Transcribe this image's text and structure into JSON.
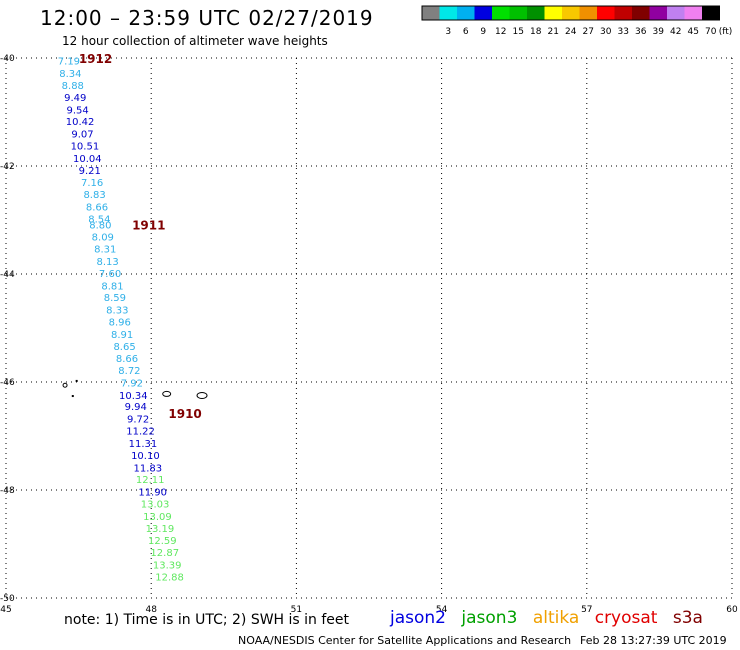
{
  "header": {
    "title": "12:00 – 23:59 UTC 02/27/2019",
    "subtitle": "12 hour collection of altimeter wave heights"
  },
  "color_scale": {
    "unit_label": "(ft)",
    "bins": [
      {
        "label": "",
        "color": "#808080"
      },
      {
        "label": "3",
        "color": "#00e8e8"
      },
      {
        "label": "6",
        "color": "#00b0f0"
      },
      {
        "label": "9",
        "color": "#0000e0"
      },
      {
        "label": "12",
        "color": "#00e000"
      },
      {
        "label": "15",
        "color": "#00c000"
      },
      {
        "label": "18",
        "color": "#009000"
      },
      {
        "label": "21",
        "color": "#ffff00"
      },
      {
        "label": "24",
        "color": "#f8c800"
      },
      {
        "label": "27",
        "color": "#f09000"
      },
      {
        "label": "30",
        "color": "#ff0000"
      },
      {
        "label": "33",
        "color": "#c00000"
      },
      {
        "label": "36",
        "color": "#800000"
      },
      {
        "label": "39",
        "color": "#9000a0"
      },
      {
        "label": "42",
        "color": "#c080f0"
      },
      {
        "label": "45",
        "color": "#f080f0"
      },
      {
        "label": "70",
        "color": "#000000"
      }
    ]
  },
  "axes": {
    "lon_ticks": [
      "45",
      "48",
      "51",
      "54",
      "57",
      "60"
    ],
    "lat_ticks": [
      "-40",
      "-42",
      "-44",
      "-46",
      "-48",
      "-50"
    ]
  },
  "chart_data": {
    "type": "scatter",
    "xlim": [
      45,
      60
    ],
    "ylim": [
      -50,
      -40
    ],
    "grid": true,
    "series": [
      {
        "points": [
          {
            "x": 46.3,
            "y": -40.05,
            "v": "7.19",
            "c": "#30b0e8"
          },
          {
            "x": 46.33,
            "y": -40.28,
            "v": "8.34",
            "c": "#30b0e8"
          },
          {
            "x": 46.38,
            "y": -40.5,
            "v": "8.88",
            "c": "#30b0e8"
          },
          {
            "x": 46.43,
            "y": -40.72,
            "v": "9.49",
            "c": "#0000c8"
          },
          {
            "x": 46.48,
            "y": -40.95,
            "v": "9.54",
            "c": "#0000c8"
          },
          {
            "x": 46.53,
            "y": -41.17,
            "v": "10.42",
            "c": "#0000c8"
          },
          {
            "x": 46.58,
            "y": -41.4,
            "v": "9.07",
            "c": "#0000c8"
          },
          {
            "x": 46.63,
            "y": -41.62,
            "v": "10.51",
            "c": "#0000c8"
          },
          {
            "x": 46.68,
            "y": -41.85,
            "v": "10.04",
            "c": "#0000c8"
          },
          {
            "x": 46.73,
            "y": -42.07,
            "v": "9.21",
            "c": "#0000c8"
          },
          {
            "x": 46.78,
            "y": -42.3,
            "v": "7.16",
            "c": "#30b0e8"
          },
          {
            "x": 46.83,
            "y": -42.52,
            "v": "8.83",
            "c": "#30b0e8"
          },
          {
            "x": 46.88,
            "y": -42.75,
            "v": "8.66",
            "c": "#30b0e8"
          },
          {
            "x": 46.93,
            "y": -42.97,
            "v": "8.54",
            "c": "#30b0e8"
          },
          {
            "x": 46.95,
            "y": -43.08,
            "v": "8.80",
            "c": "#30b0e8"
          },
          {
            "x": 47.0,
            "y": -43.31,
            "v": "8.09",
            "c": "#30b0e8"
          },
          {
            "x": 47.05,
            "y": -43.53,
            "v": "8.31",
            "c": "#30b0e8"
          },
          {
            "x": 47.1,
            "y": -43.76,
            "v": "8.13",
            "c": "#30b0e8"
          },
          {
            "x": 47.15,
            "y": -43.98,
            "v": "7.60",
            "c": "#30b0e8"
          },
          {
            "x": 47.2,
            "y": -44.21,
            "v": "8.81",
            "c": "#30b0e8"
          },
          {
            "x": 47.25,
            "y": -44.43,
            "v": "8.59",
            "c": "#30b0e8"
          },
          {
            "x": 47.3,
            "y": -44.66,
            "v": "8.33",
            "c": "#30b0e8"
          },
          {
            "x": 47.35,
            "y": -44.88,
            "v": "8.96",
            "c": "#30b0e8"
          },
          {
            "x": 47.4,
            "y": -45.11,
            "v": "8.91",
            "c": "#30b0e8"
          },
          {
            "x": 47.45,
            "y": -45.33,
            "v": "8.65",
            "c": "#30b0e8"
          },
          {
            "x": 47.5,
            "y": -45.56,
            "v": "8.66",
            "c": "#30b0e8"
          },
          {
            "x": 47.55,
            "y": -45.78,
            "v": "8.72",
            "c": "#30b0e8"
          },
          {
            "x": 47.6,
            "y": -46.01,
            "v": "7.92",
            "c": "#30b0e8"
          },
          {
            "x": 47.63,
            "y": -46.24,
            "v": "10.34",
            "c": "#0000c8"
          },
          {
            "x": 47.68,
            "y": -46.44,
            "v": "9.94",
            "c": "#0000c8"
          },
          {
            "x": 47.73,
            "y": -46.68,
            "v": "9.72",
            "c": "#0000c8"
          },
          {
            "x": 47.78,
            "y": -46.9,
            "v": "11.22",
            "c": "#0000c8"
          },
          {
            "x": 47.83,
            "y": -47.13,
            "v": "11.31",
            "c": "#0000c8"
          },
          {
            "x": 47.88,
            "y": -47.35,
            "v": "10.10",
            "c": "#0000c8"
          },
          {
            "x": 47.93,
            "y": -47.58,
            "v": "11.83",
            "c": "#0000c8"
          },
          {
            "x": 47.98,
            "y": -47.8,
            "v": "12.11",
            "c": "#60e860"
          },
          {
            "x": 48.03,
            "y": -48.03,
            "v": "11.90",
            "c": "#0000c8"
          },
          {
            "x": 48.08,
            "y": -48.25,
            "v": "13.03",
            "c": "#60e860"
          },
          {
            "x": 48.13,
            "y": -48.48,
            "v": "13.09",
            "c": "#60e860"
          },
          {
            "x": 48.18,
            "y": -48.7,
            "v": "13.19",
            "c": "#60e860"
          },
          {
            "x": 48.23,
            "y": -48.93,
            "v": "12.59",
            "c": "#60e860"
          },
          {
            "x": 48.28,
            "y": -49.15,
            "v": "12.87",
            "c": "#60e860"
          },
          {
            "x": 48.33,
            "y": -49.38,
            "v": "13.39",
            "c": "#60e860"
          },
          {
            "x": 48.38,
            "y": -49.6,
            "v": "12.88",
            "c": "#60e860"
          }
        ]
      }
    ],
    "time_labels": [
      {
        "x": 46.85,
        "y": -40.0,
        "text": "1912"
      },
      {
        "x": 47.95,
        "y": -43.08,
        "text": "1911"
      },
      {
        "x": 48.7,
        "y": -46.57,
        "text": "1910"
      }
    ]
  },
  "footer": {
    "note": "note:  1) Time is in UTC;  2) SWH is in feet",
    "satellites": [
      {
        "name": "jason2",
        "color": "#0000e0"
      },
      {
        "name": "jason3",
        "color": "#00a000"
      },
      {
        "name": "altika",
        "color": "#f0a000"
      },
      {
        "name": "cryosat",
        "color": "#e00000"
      },
      {
        "name": "s3a",
        "color": "#800000"
      }
    ],
    "credit": "NOAA/NESDIS Center for Satellite Applications and Research",
    "timestamp": "Feb 28 13:27:39 UTC 2019"
  }
}
